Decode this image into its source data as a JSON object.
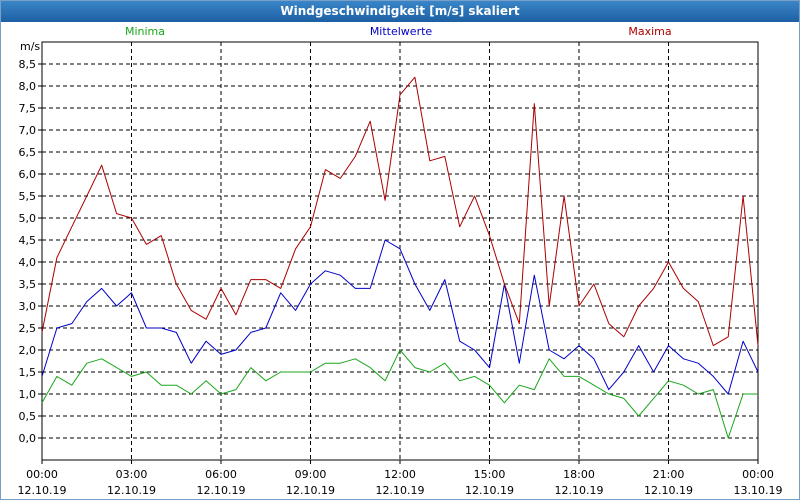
{
  "window": {
    "title": "Windgeschwindigkeit [m/s] skaliert"
  },
  "colors": {
    "minima": "#1aa51a",
    "mittelwerte": "#0000c8",
    "maxima": "#aa0000",
    "grid": "#000000",
    "titlebar": "#2a72b8"
  },
  "chart_data": {
    "type": "line",
    "title": "Windgeschwindigkeit [m/s] skaliert",
    "ylabel": "m/s",
    "xlabel": "",
    "ylim": [
      -0.5,
      9.0
    ],
    "xlim": [
      0,
      24
    ],
    "yticks": [
      0.0,
      0.5,
      1.0,
      1.5,
      2.0,
      2.5,
      3.0,
      3.5,
      4.0,
      4.5,
      5.0,
      5.5,
      6.0,
      6.5,
      7.0,
      7.5,
      8.0,
      8.5
    ],
    "ytick_labels": [
      "0,0",
      "0,5",
      "1,0",
      "1,5",
      "2,0",
      "2,5",
      "3,0",
      "3,5",
      "4,0",
      "4,5",
      "5,0",
      "5,5",
      "6,0",
      "6,5",
      "7,0",
      "7,5",
      "8,0",
      "8,5"
    ],
    "xticks": [
      0,
      3,
      6,
      9,
      12,
      15,
      18,
      21,
      24
    ],
    "xtick_times": [
      "00:00",
      "03:00",
      "06:00",
      "09:00",
      "12:00",
      "15:00",
      "18:00",
      "21:00",
      "00:00"
    ],
    "xtick_dates": [
      "12.10.19",
      "12.10.19",
      "12.10.19",
      "12.10.19",
      "12.10.19",
      "12.10.19",
      "12.10.19",
      "12.10.19",
      "13.10.19"
    ],
    "x": [
      0,
      0.5,
      1,
      1.5,
      2,
      2.5,
      3,
      3.5,
      4,
      4.5,
      5,
      5.5,
      6,
      6.5,
      7,
      7.5,
      8,
      8.5,
      9,
      9.5,
      10,
      10.5,
      11,
      11.5,
      12,
      12.5,
      13,
      13.5,
      14,
      14.5,
      15,
      15.5,
      16,
      16.5,
      17,
      17.5,
      18,
      18.5,
      19,
      19.5,
      20,
      20.5,
      21,
      21.5,
      22,
      22.5,
      23,
      23.5,
      24
    ],
    "series": [
      {
        "name": "Minima",
        "values": [
          0.8,
          1.4,
          1.2,
          1.7,
          1.8,
          1.6,
          1.4,
          1.5,
          1.2,
          1.2,
          1.0,
          1.3,
          1.0,
          1.1,
          1.6,
          1.3,
          1.5,
          1.5,
          1.5,
          1.7,
          1.7,
          1.8,
          1.6,
          1.3,
          2.0,
          1.6,
          1.5,
          1.7,
          1.3,
          1.4,
          1.2,
          0.8,
          1.2,
          1.1,
          1.8,
          1.4,
          1.4,
          1.2,
          1.0,
          0.9,
          0.5,
          0.9,
          1.3,
          1.2,
          1.0,
          1.1,
          0.0,
          1.0,
          1.0
        ]
      },
      {
        "name": "Mittelwerte",
        "values": [
          1.4,
          2.5,
          2.6,
          3.1,
          3.4,
          3.0,
          3.3,
          2.5,
          2.5,
          2.4,
          1.7,
          2.2,
          1.9,
          2.0,
          2.4,
          2.5,
          3.3,
          2.9,
          3.5,
          3.8,
          3.7,
          3.4,
          3.4,
          4.5,
          4.3,
          3.5,
          2.9,
          3.6,
          2.2,
          2.0,
          1.6,
          3.5,
          1.7,
          3.7,
          2.0,
          1.8,
          2.1,
          1.8,
          1.1,
          1.5,
          2.1,
          1.5,
          2.1,
          1.8,
          1.7,
          1.4,
          1.0,
          2.2,
          1.5
        ]
      },
      {
        "name": "Maxima",
        "values": [
          2.4,
          4.1,
          4.8,
          5.5,
          6.2,
          5.1,
          5.0,
          4.4,
          4.6,
          3.5,
          2.9,
          2.7,
          3.4,
          2.8,
          3.6,
          3.6,
          3.4,
          4.3,
          4.8,
          6.1,
          5.9,
          6.4,
          7.2,
          5.4,
          7.8,
          8.2,
          6.3,
          6.4,
          4.8,
          5.5,
          4.6,
          3.5,
          2.6,
          7.6,
          3.0,
          5.5,
          3.0,
          3.5,
          2.6,
          2.3,
          3.0,
          3.4,
          4.0,
          3.4,
          3.1,
          2.1,
          2.3,
          5.5,
          2.1
        ]
      }
    ]
  }
}
